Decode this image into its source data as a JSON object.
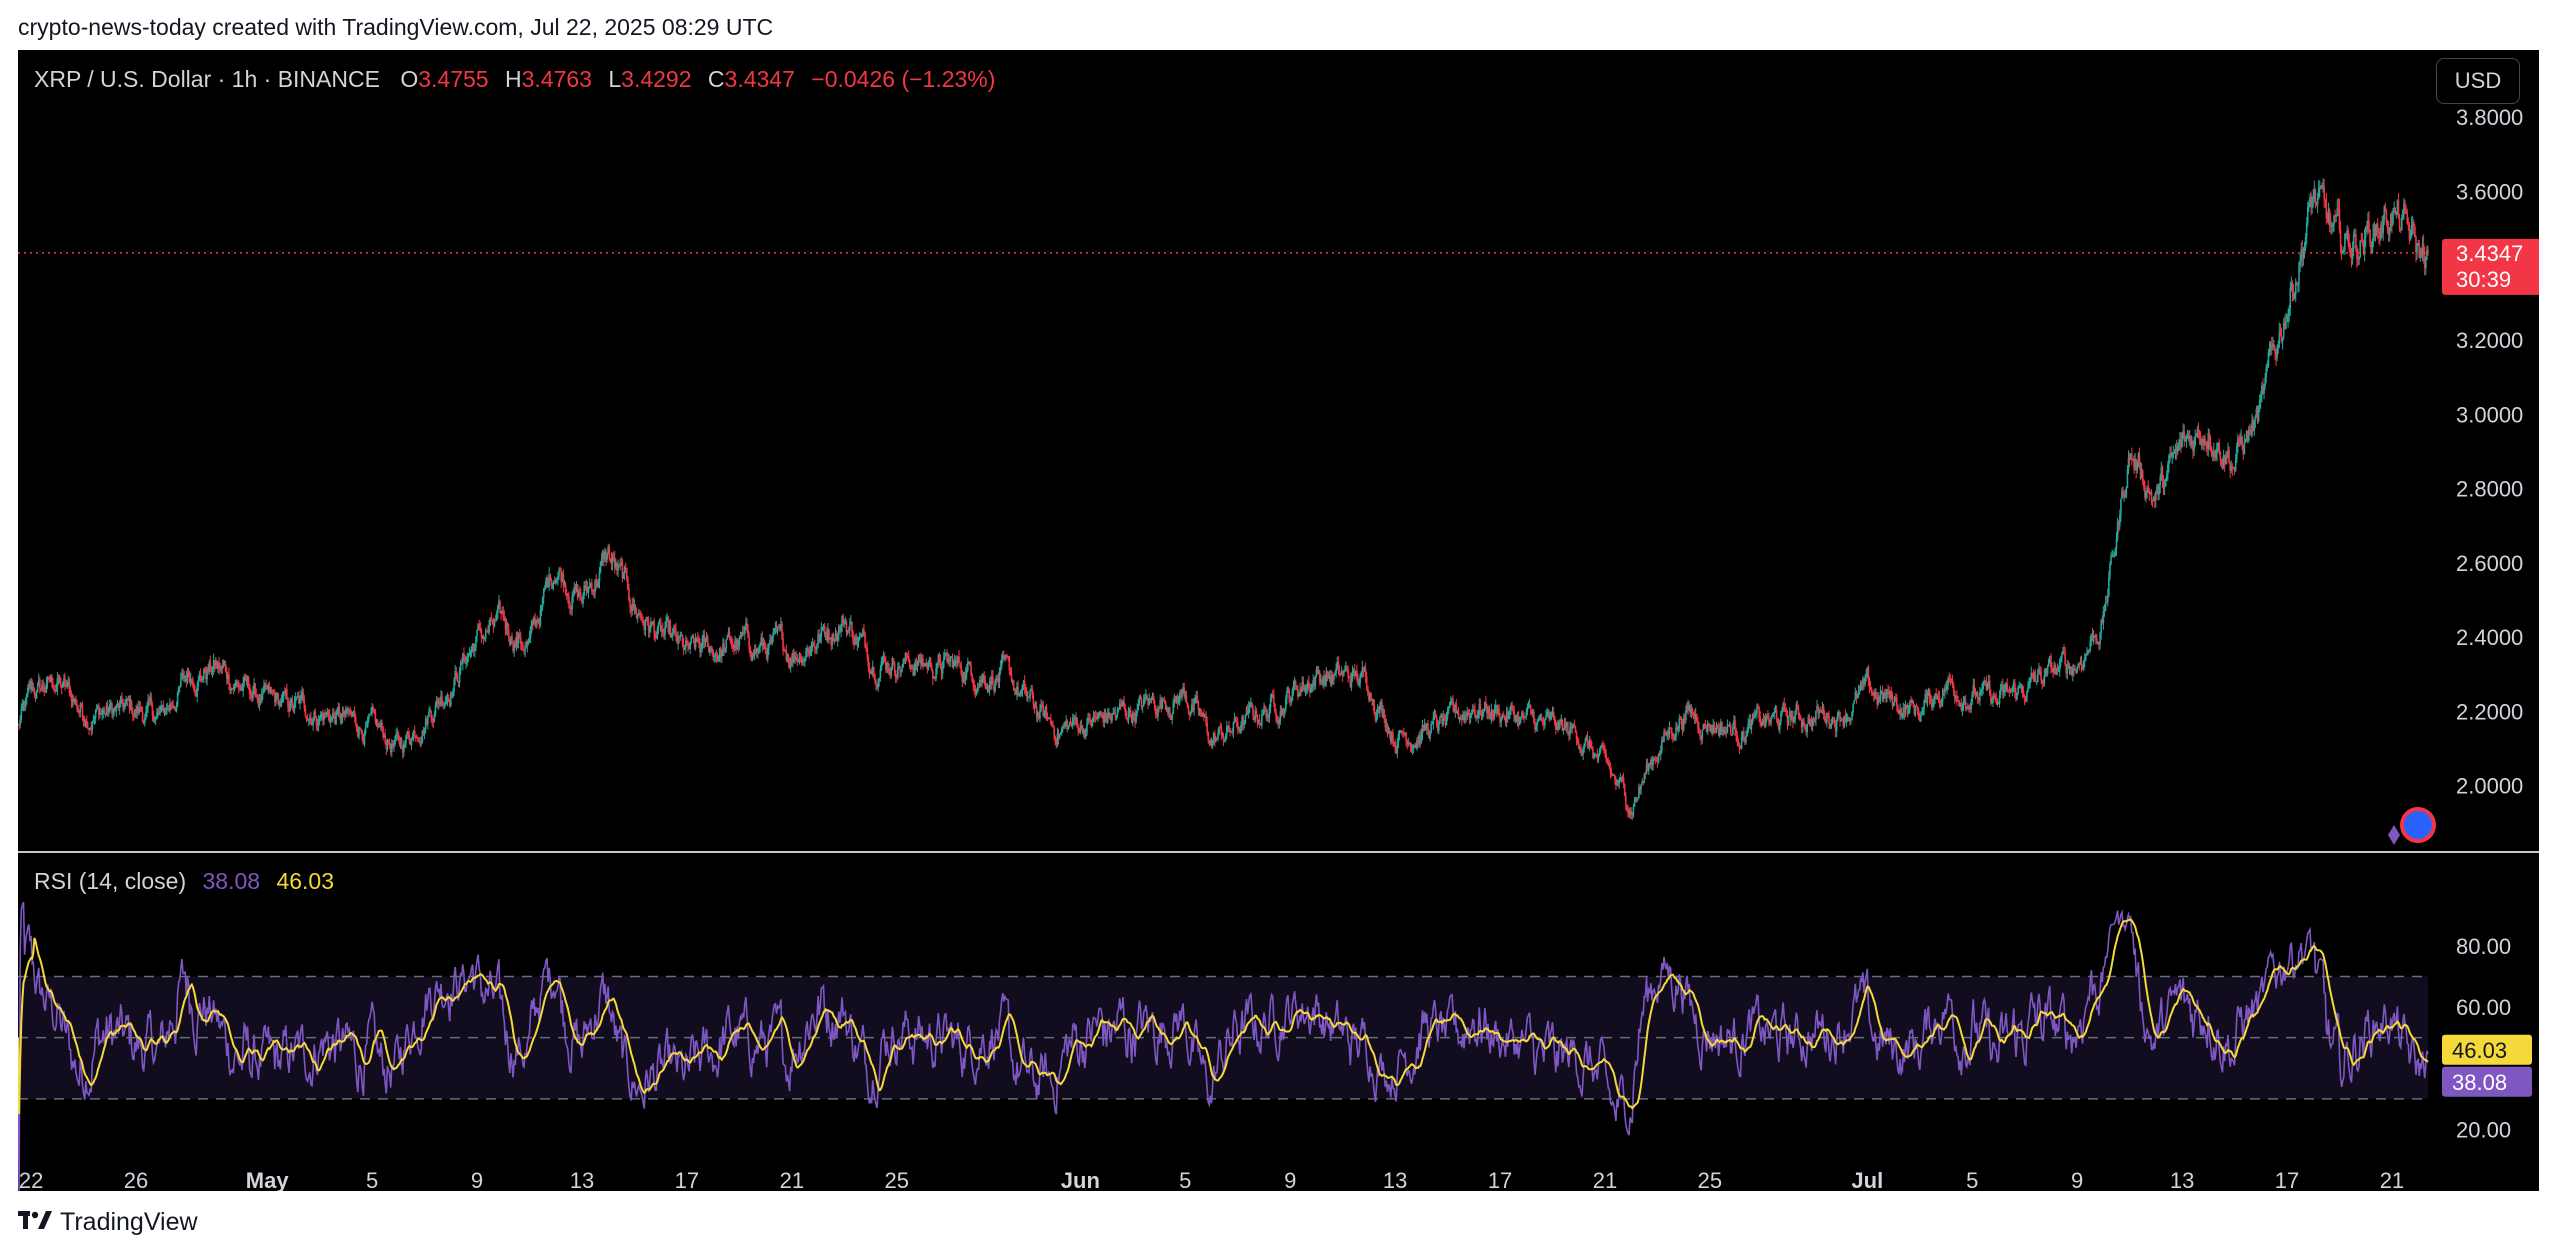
{
  "header": {
    "attribution": "crypto-news-today created with TradingView.com, Jul 22, 2025 08:29 UTC"
  },
  "legend": {
    "symbol": "XRP / U.S. Dollar · 1h · BINANCE",
    "o_label": "O",
    "o_value": "3.4755",
    "h_label": "H",
    "h_value": "3.4763",
    "l_label": "L",
    "l_value": "3.4292",
    "c_label": "C",
    "c_value": "3.4347",
    "change": "−0.0426 (−1.23%)"
  },
  "currency_button": "USD",
  "rsi_legend": {
    "label": "RSI (14, close)",
    "rsi_value": "38.08",
    "ma_value": "46.03"
  },
  "colors": {
    "background": "#000000",
    "up": "#26a69a",
    "down": "#f23645",
    "rsi": "#7e57c2",
    "rsi_ma": "#f5d93a",
    "text": "#d1d4dc",
    "grid": "#363a45"
  },
  "footer": {
    "brand": "TradingView",
    "logo": "tradingview-logo-icon"
  },
  "chart_data": [
    {
      "type": "candlestick",
      "interval": "1h",
      "y_axis": {
        "range": [
          1.8,
          3.9
        ],
        "ticks": [
          "3.8000",
          "3.6000",
          "3.2000",
          "3.0000",
          "2.8000",
          "2.6000",
          "2.4000",
          "2.2000",
          "2.0000"
        ]
      },
      "last_price_label": "3.4347",
      "last_price": 3.4347,
      "countdown_label": "30:39",
      "x_axis": {
        "range": [
          "2025-04-21T12:00",
          "2025-07-22T09:00"
        ],
        "ticks": [
          {
            "date": "2025-04-22",
            "label": "22"
          },
          {
            "date": "2025-04-26",
            "label": "26"
          },
          {
            "date": "2025-05-01",
            "label": "May"
          },
          {
            "date": "2025-05-05",
            "label": "5"
          },
          {
            "date": "2025-05-09",
            "label": "9"
          },
          {
            "date": "2025-05-13",
            "label": "13"
          },
          {
            "date": "2025-05-17",
            "label": "17"
          },
          {
            "date": "2025-05-21",
            "label": "21"
          },
          {
            "date": "2025-05-25",
            "label": "25"
          },
          {
            "date": "2025-06-01",
            "label": "Jun"
          },
          {
            "date": "2025-06-05",
            "label": "5"
          },
          {
            "date": "2025-06-09",
            "label": "9"
          },
          {
            "date": "2025-06-13",
            "label": "13"
          },
          {
            "date": "2025-06-17",
            "label": "17"
          },
          {
            "date": "2025-06-21",
            "label": "21"
          },
          {
            "date": "2025-06-25",
            "label": "25"
          },
          {
            "date": "2025-07-01",
            "label": "Jul"
          },
          {
            "date": "2025-07-05",
            "label": "5"
          },
          {
            "date": "2025-07-09",
            "label": "9"
          },
          {
            "date": "2025-07-13",
            "label": "13"
          },
          {
            "date": "2025-07-17",
            "label": "17"
          },
          {
            "date": "2025-07-21",
            "label": "21"
          }
        ]
      },
      "price_path": [
        {
          "date": "2025-04-21",
          "price": 2.08
        },
        {
          "date": "2025-04-22",
          "price": 2.24
        },
        {
          "date": "2025-04-23",
          "price": 2.28
        },
        {
          "date": "2025-04-24",
          "price": 2.2
        },
        {
          "date": "2025-04-26",
          "price": 2.2
        },
        {
          "date": "2025-04-27",
          "price": 2.18
        },
        {
          "date": "2025-04-28",
          "price": 2.3
        },
        {
          "date": "2025-04-29",
          "price": 2.32
        },
        {
          "date": "2025-05-01",
          "price": 2.22
        },
        {
          "date": "2025-05-03",
          "price": 2.2
        },
        {
          "date": "2025-05-05",
          "price": 2.15
        },
        {
          "date": "2025-05-06",
          "price": 2.1
        },
        {
          "date": "2025-05-08",
          "price": 2.28
        },
        {
          "date": "2025-05-09",
          "price": 2.4
        },
        {
          "date": "2025-05-10",
          "price": 2.43
        },
        {
          "date": "2025-05-11",
          "price": 2.38
        },
        {
          "date": "2025-05-12",
          "price": 2.6
        },
        {
          "date": "2025-05-13",
          "price": 2.5
        },
        {
          "date": "2025-05-14",
          "price": 2.62
        },
        {
          "date": "2025-05-15",
          "price": 2.48
        },
        {
          "date": "2025-05-16",
          "price": 2.4
        },
        {
          "date": "2025-05-17",
          "price": 2.35
        },
        {
          "date": "2025-05-19",
          "price": 2.38
        },
        {
          "date": "2025-05-21",
          "price": 2.36
        },
        {
          "date": "2025-05-23",
          "price": 2.45
        },
        {
          "date": "2025-05-24",
          "price": 2.35
        },
        {
          "date": "2025-05-26",
          "price": 2.33
        },
        {
          "date": "2025-05-29",
          "price": 2.3
        },
        {
          "date": "2025-05-31",
          "price": 2.15
        },
        {
          "date": "2025-06-02",
          "price": 2.18
        },
        {
          "date": "2025-06-05",
          "price": 2.25
        },
        {
          "date": "2025-06-06",
          "price": 2.12
        },
        {
          "date": "2025-06-08",
          "price": 2.2
        },
        {
          "date": "2025-06-10",
          "price": 2.3
        },
        {
          "date": "2025-06-12",
          "price": 2.28
        },
        {
          "date": "2025-06-13",
          "price": 2.14
        },
        {
          "date": "2025-06-15",
          "price": 2.16
        },
        {
          "date": "2025-06-16",
          "price": 2.22
        },
        {
          "date": "2025-06-17",
          "price": 2.2
        },
        {
          "date": "2025-06-19",
          "price": 2.15
        },
        {
          "date": "2025-06-20",
          "price": 2.14
        },
        {
          "date": "2025-06-22",
          "price": 1.95
        },
        {
          "date": "2025-06-23",
          "price": 2.1
        },
        {
          "date": "2025-06-24",
          "price": 2.2
        },
        {
          "date": "2025-06-26",
          "price": 2.15
        },
        {
          "date": "2025-06-28",
          "price": 2.18
        },
        {
          "date": "2025-06-30",
          "price": 2.2
        },
        {
          "date": "2025-07-01",
          "price": 2.25
        },
        {
          "date": "2025-07-03",
          "price": 2.2
        },
        {
          "date": "2025-07-04",
          "price": 2.28
        },
        {
          "date": "2025-07-06",
          "price": 2.22
        },
        {
          "date": "2025-07-08",
          "price": 2.3
        },
        {
          "date": "2025-07-09",
          "price": 2.33
        },
        {
          "date": "2025-07-10",
          "price": 2.45
        },
        {
          "date": "2025-07-11",
          "price": 2.9
        },
        {
          "date": "2025-07-12",
          "price": 2.78
        },
        {
          "date": "2025-07-13",
          "price": 2.9
        },
        {
          "date": "2025-07-14",
          "price": 2.98
        },
        {
          "date": "2025-07-15",
          "price": 2.88
        },
        {
          "date": "2025-07-16",
          "price": 3.0
        },
        {
          "date": "2025-07-17",
          "price": 3.3
        },
        {
          "date": "2025-07-18",
          "price": 3.58
        },
        {
          "date": "2025-07-19",
          "price": 3.45
        },
        {
          "date": "2025-07-20",
          "price": 3.48
        },
        {
          "date": "2025-07-21",
          "price": 3.55
        },
        {
          "date": "2025-07-22",
          "price": 3.43
        }
      ]
    },
    {
      "type": "line",
      "title": "RSI (14, close)",
      "y_axis": {
        "range": [
          10,
          95
        ],
        "ticks": [
          "80.00",
          "60.00",
          "20.00"
        ]
      },
      "bands": {
        "upper": 70,
        "middle": 50,
        "lower": 30
      },
      "series": [
        {
          "name": "RSI",
          "last": 38.08
        },
        {
          "name": "MA",
          "last": 46.03
        }
      ]
    }
  ]
}
